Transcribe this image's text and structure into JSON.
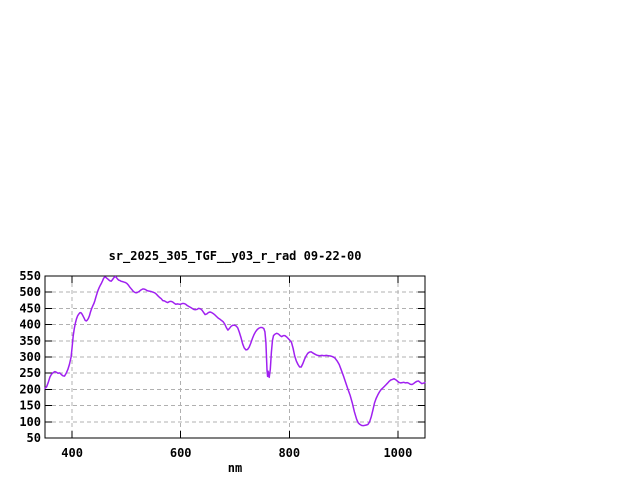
{
  "colors": {
    "background": "#ffffff",
    "line": "#A020F0",
    "grid": "#b0b0b0",
    "axis": "#000000",
    "text": "#000000"
  },
  "chart_data": {
    "type": "line",
    "title": "sr_2025_305_TGF__y03_r_rad 09-22-00",
    "xlabel": "nm",
    "ylabel": "",
    "xlim": [
      350,
      1050
    ],
    "ylim": [
      50,
      550
    ],
    "x_ticks": [
      400,
      600,
      800,
      1000
    ],
    "y_ticks": [
      50,
      100,
      150,
      200,
      250,
      300,
      350,
      400,
      450,
      500,
      550
    ],
    "grid": "dashed",
    "legend": "none",
    "series": [
      {
        "name": "sr_2025_305_TGF__y03_r_rad",
        "color": "#A020F0",
        "points": [
          [
            350,
            203
          ],
          [
            353,
            208
          ],
          [
            356,
            222
          ],
          [
            359,
            238
          ],
          [
            362,
            247
          ],
          [
            365,
            252
          ],
          [
            368,
            255
          ],
          [
            371,
            253
          ],
          [
            374,
            250
          ],
          [
            377,
            251
          ],
          [
            380,
            246
          ],
          [
            383,
            242
          ],
          [
            386,
            241
          ],
          [
            389,
            250
          ],
          [
            392,
            261
          ],
          [
            395,
            277
          ],
          [
            398,
            300
          ],
          [
            400,
            330
          ],
          [
            402,
            365
          ],
          [
            404,
            388
          ],
          [
            406,
            405
          ],
          [
            408,
            418
          ],
          [
            410,
            427
          ],
          [
            412,
            432
          ],
          [
            414,
            436
          ],
          [
            416,
            437
          ],
          [
            418,
            433
          ],
          [
            420,
            427
          ],
          [
            422,
            420
          ],
          [
            424,
            413
          ],
          [
            426,
            411
          ],
          [
            428,
            414
          ],
          [
            430,
            419
          ],
          [
            432,
            428
          ],
          [
            434,
            440
          ],
          [
            436,
            450
          ],
          [
            438,
            458
          ],
          [
            440,
            465
          ],
          [
            442,
            474
          ],
          [
            444,
            486
          ],
          [
            446,
            497
          ],
          [
            448,
            507
          ],
          [
            450,
            515
          ],
          [
            452,
            522
          ],
          [
            454,
            528
          ],
          [
            456,
            535
          ],
          [
            458,
            543
          ],
          [
            460,
            547
          ],
          [
            462,
            546
          ],
          [
            464,
            543
          ],
          [
            466,
            540
          ],
          [
            468,
            537
          ],
          [
            470,
            535
          ],
          [
            472,
            534
          ],
          [
            474,
            538
          ],
          [
            476,
            543
          ],
          [
            478,
            547
          ],
          [
            480,
            548
          ],
          [
            482,
            544
          ],
          [
            484,
            540
          ],
          [
            486,
            537
          ],
          [
            488,
            536
          ],
          [
            490,
            534
          ],
          [
            492,
            533
          ],
          [
            494,
            532
          ],
          [
            496,
            531
          ],
          [
            498,
            530
          ],
          [
            500,
            528
          ],
          [
            502,
            525
          ],
          [
            504,
            521
          ],
          [
            506,
            516
          ],
          [
            508,
            512
          ],
          [
            510,
            508
          ],
          [
            512,
            504
          ],
          [
            514,
            501
          ],
          [
            516,
            499
          ],
          [
            518,
            498
          ],
          [
            520,
            499
          ],
          [
            522,
            501
          ],
          [
            524,
            503
          ],
          [
            526,
            506
          ],
          [
            528,
            508
          ],
          [
            530,
            510
          ],
          [
            532,
            510
          ],
          [
            534,
            509
          ],
          [
            536,
            507
          ],
          [
            538,
            505
          ],
          [
            540,
            504
          ],
          [
            543,
            503
          ],
          [
            546,
            502
          ],
          [
            549,
            500
          ],
          [
            552,
            498
          ],
          [
            555,
            494
          ],
          [
            558,
            489
          ],
          [
            561,
            484
          ],
          [
            564,
            480
          ],
          [
            567,
            474
          ],
          [
            570,
            473
          ],
          [
            573,
            470
          ],
          [
            576,
            468
          ],
          [
            579,
            471
          ],
          [
            582,
            472
          ],
          [
            585,
            470
          ],
          [
            588,
            466
          ],
          [
            591,
            463
          ],
          [
            594,
            464
          ],
          [
            597,
            463
          ],
          [
            600,
            463
          ],
          [
            603,
            465
          ],
          [
            606,
            465
          ],
          [
            609,
            463
          ],
          [
            612,
            459
          ],
          [
            615,
            456
          ],
          [
            618,
            453
          ],
          [
            621,
            450
          ],
          [
            624,
            447
          ],
          [
            627,
            446
          ],
          [
            630,
            447
          ],
          [
            633,
            450
          ],
          [
            636,
            449
          ],
          [
            639,
            445
          ],
          [
            642,
            438
          ],
          [
            645,
            431
          ],
          [
            648,
            433
          ],
          [
            651,
            437
          ],
          [
            654,
            439
          ],
          [
            657,
            437
          ],
          [
            660,
            434
          ],
          [
            663,
            430
          ],
          [
            666,
            425
          ],
          [
            669,
            420
          ],
          [
            672,
            417
          ],
          [
            675,
            413
          ],
          [
            678,
            409
          ],
          [
            681,
            402
          ],
          [
            684,
            391
          ],
          [
            687,
            383
          ],
          [
            690,
            389
          ],
          [
            693,
            395
          ],
          [
            696,
            398
          ],
          [
            699,
            398
          ],
          [
            702,
            396
          ],
          [
            705,
            390
          ],
          [
            708,
            377
          ],
          [
            711,
            360
          ],
          [
            714,
            341
          ],
          [
            717,
            328
          ],
          [
            720,
            322
          ],
          [
            723,
            323
          ],
          [
            726,
            330
          ],
          [
            729,
            342
          ],
          [
            732,
            357
          ],
          [
            735,
            369
          ],
          [
            738,
            378
          ],
          [
            741,
            385
          ],
          [
            744,
            389
          ],
          [
            747,
            391
          ],
          [
            750,
            391
          ],
          [
            753,
            388
          ],
          [
            755,
            378
          ],
          [
            757,
            345
          ],
          [
            759,
            260
          ],
          [
            760,
            240
          ],
          [
            761,
            256
          ],
          [
            762,
            247
          ],
          [
            763,
            237
          ],
          [
            765,
            262
          ],
          [
            767,
            315
          ],
          [
            769,
            352
          ],
          [
            771,
            366
          ],
          [
            774,
            371
          ],
          [
            777,
            373
          ],
          [
            780,
            371
          ],
          [
            783,
            366
          ],
          [
            786,
            363
          ],
          [
            789,
            366
          ],
          [
            792,
            366
          ],
          [
            795,
            362
          ],
          [
            798,
            357
          ],
          [
            801,
            352
          ],
          [
            804,
            345
          ],
          [
            807,
            327
          ],
          [
            810,
            303
          ],
          [
            813,
            288
          ],
          [
            816,
            277
          ],
          [
            819,
            269
          ],
          [
            822,
            269
          ],
          [
            825,
            280
          ],
          [
            828,
            293
          ],
          [
            831,
            303
          ],
          [
            834,
            311
          ],
          [
            837,
            315
          ],
          [
            840,
            316
          ],
          [
            843,
            313
          ],
          [
            846,
            310
          ],
          [
            849,
            307
          ],
          [
            852,
            305
          ],
          [
            856,
            304
          ],
          [
            860,
            305
          ],
          [
            864,
            304
          ],
          [
            868,
            305
          ],
          [
            872,
            304
          ],
          [
            876,
            303
          ],
          [
            880,
            301
          ],
          [
            884,
            297
          ],
          [
            888,
            288
          ],
          [
            892,
            277
          ],
          [
            896,
            259
          ],
          [
            900,
            240
          ],
          [
            904,
            221
          ],
          [
            908,
            201
          ],
          [
            912,
            182
          ],
          [
            916,
            158
          ],
          [
            920,
            131
          ],
          [
            924,
            108
          ],
          [
            927,
            97
          ],
          [
            930,
            92
          ],
          [
            933,
            89
          ],
          [
            936,
            88
          ],
          [
            939,
            89
          ],
          [
            942,
            90
          ],
          [
            945,
            92
          ],
          [
            948,
            100
          ],
          [
            951,
            116
          ],
          [
            954,
            136
          ],
          [
            957,
            158
          ],
          [
            960,
            172
          ],
          [
            963,
            183
          ],
          [
            966,
            192
          ],
          [
            969,
            199
          ],
          [
            972,
            204
          ],
          [
            975,
            209
          ],
          [
            978,
            214
          ],
          [
            981,
            219
          ],
          [
            984,
            225
          ],
          [
            987,
            229
          ],
          [
            990,
            231
          ],
          [
            993,
            233
          ],
          [
            996,
            230
          ],
          [
            999,
            226
          ],
          [
            1002,
            222
          ],
          [
            1005,
            220
          ],
          [
            1008,
            221
          ],
          [
            1011,
            222
          ],
          [
            1014,
            220
          ],
          [
            1017,
            221
          ],
          [
            1020,
            219
          ],
          [
            1023,
            216
          ],
          [
            1026,
            215
          ],
          [
            1029,
            218
          ],
          [
            1032,
            222
          ],
          [
            1035,
            225
          ],
          [
            1038,
            226
          ],
          [
            1041,
            222
          ],
          [
            1044,
            218
          ],
          [
            1047,
            219
          ],
          [
            1050,
            221
          ]
        ]
      }
    ]
  }
}
